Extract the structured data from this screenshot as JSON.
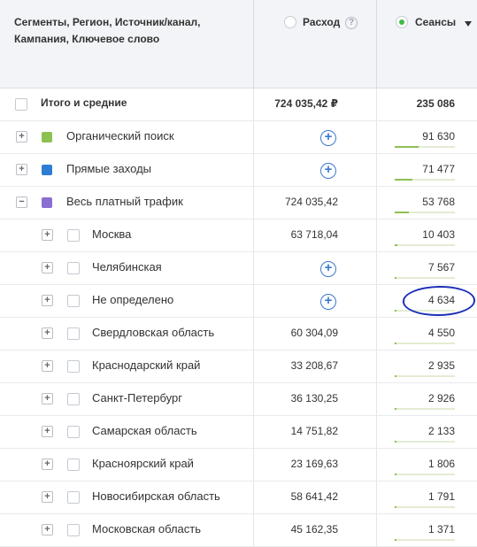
{
  "header": {
    "segments_label": "Сегменты, Регион, Источник/канал, Кампания, Ключевое слово",
    "spend_label": "Расход",
    "sessions_label": "Сеансы"
  },
  "colors": {
    "organic": "#8cc152",
    "direct": "#2d7dd2",
    "paid": "#8a6fd1",
    "bar": "#8cc152",
    "highlight": "#1b2fb8"
  },
  "rows": [
    {
      "label": "Итого и средние",
      "spend": "724 035,42 ₽",
      "sessions": "235 086",
      "total": true
    },
    {
      "label": "Органический поиск",
      "spend": "",
      "sessions": "91 630",
      "share": 0.39,
      "toggle": "+",
      "color": "organic"
    },
    {
      "label": "Прямые заходы",
      "spend": "",
      "sessions": "71 477",
      "share": 0.3,
      "toggle": "+",
      "color": "direct"
    },
    {
      "label": "Весь платный трафик",
      "spend": "724 035,42",
      "sessions": "53 768",
      "share": 0.23,
      "toggle": "−",
      "color": "paid"
    },
    {
      "label": "Москва",
      "spend": "63 718,04",
      "sessions": "10 403",
      "share": 0.044,
      "toggle": "+",
      "child": true
    },
    {
      "label": "Челябинская",
      "spend": "",
      "sessions": "7 567",
      "share": 0.032,
      "toggle": "+",
      "child": true
    },
    {
      "label": "Не определено",
      "spend": "",
      "sessions": "4 634",
      "share": 0.02,
      "toggle": "+",
      "child": true
    },
    {
      "label": "Свердловская область",
      "spend": "60 304,09",
      "sessions": "4 550",
      "share": 0.019,
      "toggle": "+",
      "child": true
    },
    {
      "label": "Краснодарский край",
      "spend": "33 208,67",
      "sessions": "2 935",
      "share": 0.013,
      "toggle": "+",
      "child": true
    },
    {
      "label": "Санкт-Петербург",
      "spend": "36 130,25",
      "sessions": "2 926",
      "share": 0.012,
      "toggle": "+",
      "child": true
    },
    {
      "label": "Самарская область",
      "spend": "14 751,82",
      "sessions": "2 133",
      "share": 0.009,
      "toggle": "+",
      "child": true
    },
    {
      "label": "Красноярский край",
      "spend": "23 169,63",
      "sessions": "1 806",
      "share": 0.008,
      "toggle": "+",
      "child": true
    },
    {
      "label": "Новосибирская область",
      "spend": "58 641,42",
      "sessions": "1 791",
      "share": 0.008,
      "toggle": "+",
      "child": true
    },
    {
      "label": "Московская область",
      "spend": "45 162,35",
      "sessions": "1 371",
      "share": 0.006,
      "toggle": "+",
      "child": true
    }
  ]
}
